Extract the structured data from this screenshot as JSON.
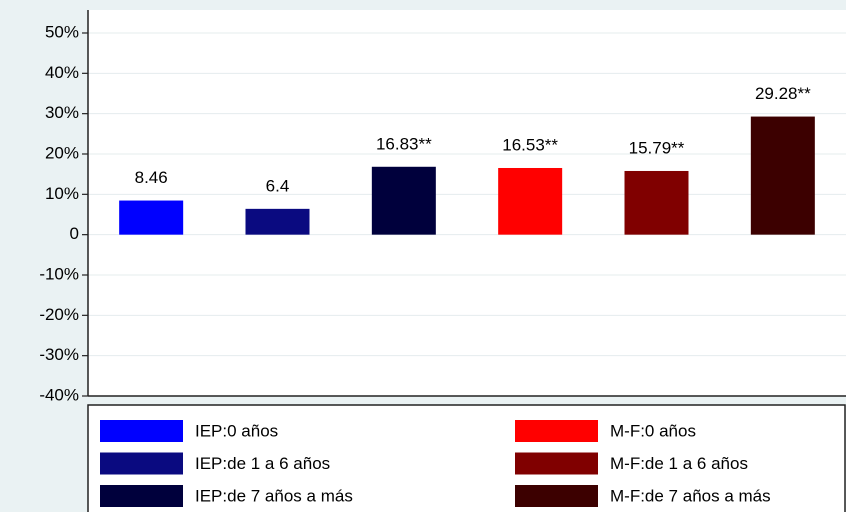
{
  "chart_data": {
    "type": "bar",
    "series": [
      {
        "name": "IEP:0 años",
        "color": "#0000ff",
        "values": [
          8.46
        ]
      },
      {
        "name": "IEP:de 1 a 6 años",
        "color": "#0a0a80",
        "values": [
          6.4
        ]
      },
      {
        "name": "IEP:de 7 años a más",
        "color": "#00003c",
        "values": [
          16.83
        ],
        "value_labels": [
          "16.83**"
        ]
      },
      {
        "name": "M-F:0 años",
        "color": "#ff0000",
        "values": [
          16.53
        ],
        "value_labels": [
          "16.53**"
        ]
      },
      {
        "name": "M-F:de 1 a 6 años",
        "color": "#800000",
        "values": [
          15.79
        ],
        "value_labels": [
          "15.79**"
        ]
      },
      {
        "name": "M-F:de 7 años a más",
        "color": "#3c0000",
        "values": [
          29.28
        ],
        "value_labels": [
          "29.28**"
        ]
      }
    ],
    "ylim": [
      -40,
      55.7
    ],
    "yticks": [
      {
        "value": 50,
        "label": "50%"
      },
      {
        "value": 40,
        "label": "40%"
      },
      {
        "value": 30,
        "label": "30%"
      },
      {
        "value": 20,
        "label": "20%"
      },
      {
        "value": 10,
        "label": "10%"
      },
      0,
      {
        "value": -10,
        "label": "-10%"
      },
      {
        "value": -20,
        "label": "-20%"
      },
      {
        "value": -30,
        "label": "-30%"
      },
      {
        "value": -40,
        "label": "-40%"
      }
    ],
    "grid": true,
    "legend": "bottom"
  }
}
